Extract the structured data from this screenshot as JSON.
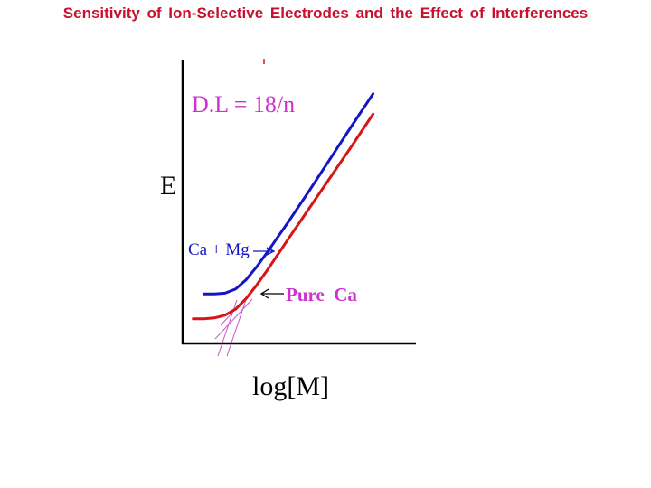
{
  "slide": {
    "title": "Sensitivity of Ion-Selective Electrodes and the Effect of Interferences"
  },
  "colors": {
    "title": "#c8102e",
    "detection_limit_label": "#cc33cc",
    "ca_mg_curve": "#1515c8",
    "pure_ca_curve": "#d81414",
    "pure_ca_label": "#cc33cc",
    "tangent_lines": "#cc55cc",
    "axes": "#000000"
  },
  "chart_data": {
    "type": "line",
    "title": "",
    "annotation": "D.L = 18/n",
    "ylabel": "E",
    "xlabel": "log[M]",
    "xlim": [
      0,
      10
    ],
    "ylim": [
      0,
      10
    ],
    "series": [
      {
        "name": "Ca + Mg",
        "color": "#1515c8",
        "x": [
          1.0,
          1.5,
          2.0,
          2.5,
          3.0,
          3.5,
          4.0,
          5.0,
          6.0,
          7.0,
          8.0,
          9.0
        ],
        "y": [
          1.77,
          1.77,
          1.8,
          1.95,
          2.3,
          2.78,
          3.32,
          4.45,
          5.62,
          6.82,
          8.02,
          9.2
        ]
      },
      {
        "name": "Pure Ca",
        "color": "#d81414",
        "x": [
          0.5,
          1.0,
          1.5,
          2.0,
          2.5,
          3.0,
          3.5,
          4.0,
          5.0,
          6.0,
          7.0,
          8.0,
          9.0
        ],
        "y": [
          0.85,
          0.85,
          0.88,
          0.98,
          1.2,
          1.6,
          2.1,
          2.65,
          3.82,
          4.97,
          6.12,
          7.27,
          8.45
        ]
      }
    ],
    "annotations": [
      {
        "text": "Ca + Mg",
        "color": "#1515c8",
        "arrow_to": "Ca + Mg curve"
      },
      {
        "text": "Pure  Ca",
        "color": "#cc33cc",
        "arrow_to": "Pure Ca curve"
      }
    ]
  }
}
